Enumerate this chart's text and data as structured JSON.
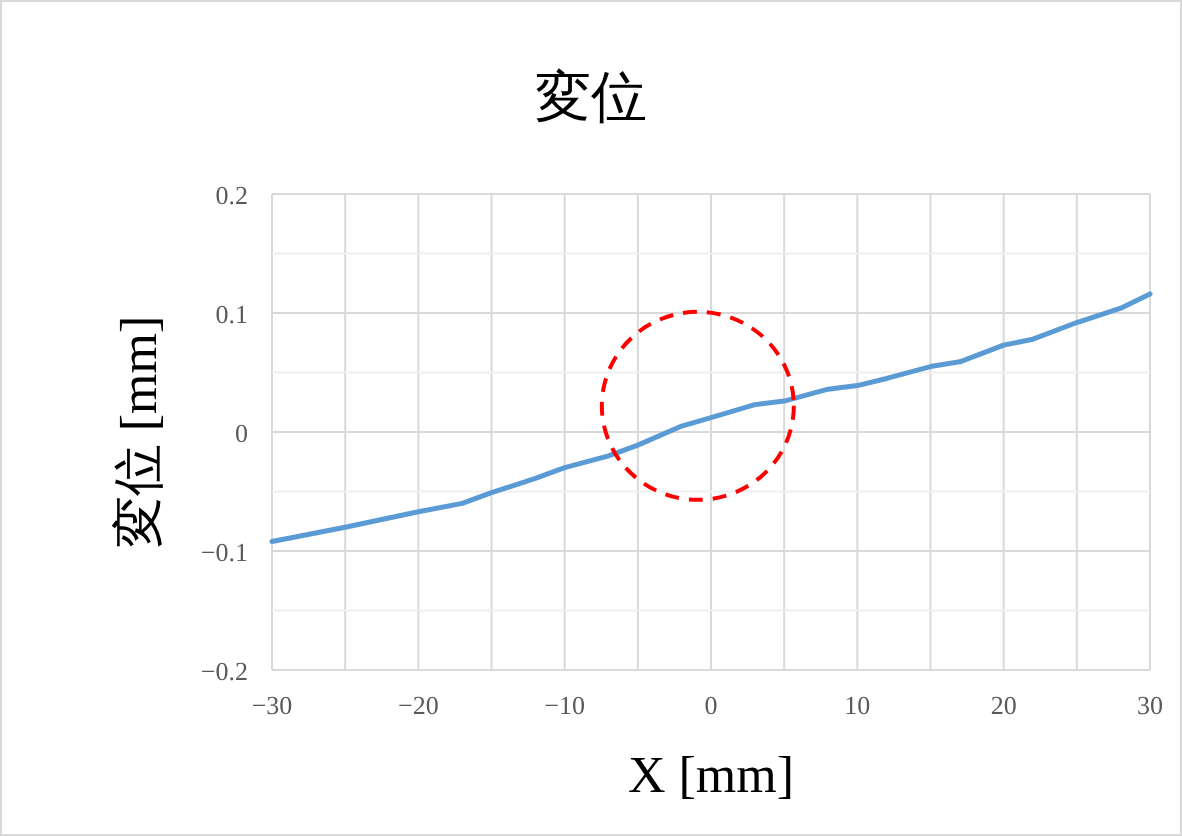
{
  "chart_data": {
    "type": "line",
    "title": "変位",
    "xlabel": "X [mm]",
    "ylabel": "変位 [mm]",
    "xlim": [
      -30,
      30
    ],
    "ylim": [
      -0.2,
      0.2
    ],
    "xticks": [
      -30,
      {
        "value": -25,
        "label": null
      },
      -20,
      {
        "value": -15,
        "label": null
      },
      -10,
      {
        "value": -5,
        "label": null
      },
      0,
      {
        "value": 5,
        "label": null
      },
      10,
      {
        "value": 15,
        "label": null
      },
      20,
      {
        "value": 25,
        "label": null
      },
      30
    ],
    "yticks": [
      -0.2,
      {
        "value": -0.15,
        "label": null
      },
      -0.1,
      {
        "value": -0.05,
        "label": null
      },
      0,
      {
        "value": 0.05,
        "label": null
      },
      0.1,
      {
        "value": 0.15,
        "label": null
      },
      0.2
    ],
    "grid": true,
    "marker": "none",
    "line_style": "solid",
    "series": [
      {
        "color": "#5b9bd5",
        "x": [
          -30,
          -25,
          -20,
          -17,
          -15,
          -12,
          -10,
          -7,
          -5,
          -2,
          0,
          3,
          5,
          8,
          10,
          12,
          15,
          17,
          20,
          22,
          25,
          28,
          30
        ],
        "values": [
          -0.092,
          -0.08,
          -0.067,
          -0.06,
          -0.051,
          -0.039,
          -0.03,
          -0.02,
          -0.011,
          0.005,
          0.012,
          0.023,
          0.026,
          0.036,
          0.039,
          0.045,
          0.055,
          0.059,
          0.073,
          0.078,
          0.092,
          0.104,
          0.116
        ]
      }
    ]
  }
}
